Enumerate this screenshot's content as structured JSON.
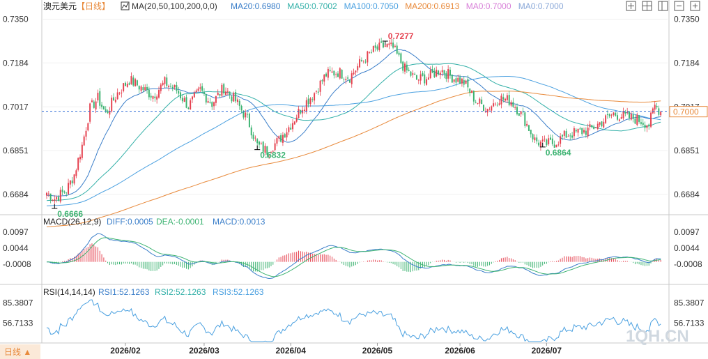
{
  "header": {
    "symbol": "澳元美元",
    "period_tag": "【日线】",
    "ma_label": "MA(20,50,100,200,0,0)",
    "ma_values": [
      {
        "label": "MA20:0.6980",
        "color": "#3a7ec9"
      },
      {
        "label": "MA50:0.7002",
        "color": "#33b0a8"
      },
      {
        "label": "MA100:0.7050",
        "color": "#4aa0e0"
      },
      {
        "label": "MA200:0.6913",
        "color": "#e8893a"
      },
      {
        "label": "MA0:0.7000",
        "color": "#d880d8"
      },
      {
        "label": "MA0:0.7000",
        "color": "#8aa8d8"
      }
    ]
  },
  "toolbar_icons": [
    "fit-icon",
    "grid-icon",
    "split-icon",
    "minus-icon",
    "plus-icon"
  ],
  "price_axis": {
    "ticks": [
      "0.7350",
      "0.7184",
      "0.7017",
      "0.6851",
      "0.6684"
    ],
    "tick_values": [
      0.735,
      0.7184,
      0.7017,
      0.6851,
      0.6684
    ],
    "current_price": "0.7000",
    "current_value": 0.7
  },
  "annotations": {
    "high": "0.7277",
    "low1": "0.6666",
    "low2": "0.6832",
    "low3": "0.6864"
  },
  "macd": {
    "title": "MACD(26,12,9)",
    "diff": "DIFF:0.0005",
    "dea": "DEA:-0.0001",
    "macd": "MACD:0.0013",
    "ticks": [
      "0.0097",
      "0.0044",
      "-0.0008"
    ],
    "tick_values": [
      0.0097,
      0.0044,
      -0.0008
    ]
  },
  "rsi": {
    "title": "RSI(14,14,14)",
    "rsi1": "RSI1:52.1263",
    "rsi2": "RSI2:52.1263",
    "rsi3": "RSI3:52.1263",
    "ticks": [
      "85.3807",
      "56.7133"
    ],
    "tick_values": [
      85.3807,
      56.7133
    ]
  },
  "footer": {
    "period_button": "日线 ▲",
    "watermark": "1QH.CN"
  },
  "colors": {
    "up": "#e5414f",
    "down": "#3cb371",
    "ma20": "#3a7ec9",
    "ma50": "#33b0a8",
    "ma100": "#4aa0e0",
    "ma200": "#e8893a",
    "diff": "#3a7ec9",
    "dea": "#3cb371",
    "rsi": "#4aa0e0",
    "current_price": "#e8893a"
  },
  "chart_data": {
    "type": "candlestick",
    "x_labels": [
      "2026/02",
      "2026/03",
      "2026/04",
      "2026/05",
      "2026/06",
      "2026/07"
    ],
    "ylim": [
      0.662,
      0.7365
    ],
    "close_anchors": [
      [
        0,
        0.669
      ],
      [
        4,
        0.6668
      ],
      [
        10,
        0.67
      ],
      [
        14,
        0.676
      ],
      [
        18,
        0.687
      ],
      [
        22,
        0.701
      ],
      [
        26,
        0.705
      ],
      [
        30,
        0.699
      ],
      [
        36,
        0.707
      ],
      [
        42,
        0.712
      ],
      [
        48,
        0.709
      ],
      [
        54,
        0.706
      ],
      [
        60,
        0.711
      ],
      [
        66,
        0.708
      ],
      [
        72,
        0.702
      ],
      [
        78,
        0.708
      ],
      [
        84,
        0.703
      ],
      [
        90,
        0.709
      ],
      [
        96,
        0.704
      ],
      [
        102,
        0.697
      ],
      [
        107,
        0.687
      ],
      [
        112,
        0.685
      ],
      [
        118,
        0.689
      ],
      [
        124,
        0.695
      ],
      [
        130,
        0.702
      ],
      [
        136,
        0.707
      ],
      [
        142,
        0.714
      ],
      [
        148,
        0.715
      ],
      [
        154,
        0.713
      ],
      [
        160,
        0.719
      ],
      [
        166,
        0.723
      ],
      [
        172,
        0.725
      ],
      [
        176,
        0.724
      ],
      [
        182,
        0.716
      ],
      [
        188,
        0.712
      ],
      [
        194,
        0.713
      ],
      [
        200,
        0.716
      ],
      [
        206,
        0.713
      ],
      [
        212,
        0.711
      ],
      [
        218,
        0.704
      ],
      [
        224,
        0.701
      ],
      [
        230,
        0.705
      ],
      [
        236,
        0.704
      ],
      [
        242,
        0.698
      ],
      [
        248,
        0.689
      ],
      [
        252,
        0.6875
      ],
      [
        258,
        0.688
      ],
      [
        264,
        0.691
      ],
      [
        270,
        0.692
      ],
      [
        276,
        0.693
      ],
      [
        282,
        0.696
      ],
      [
        288,
        0.699
      ],
      [
        294,
        0.698
      ],
      [
        300,
        0.697
      ],
      [
        306,
        0.695
      ],
      [
        309,
        0.702
      ],
      [
        312,
        0.7
      ]
    ],
    "macd_ylim": [
      -0.0055,
      0.011
    ],
    "rsi_ylim": [
      30,
      92
    ]
  }
}
